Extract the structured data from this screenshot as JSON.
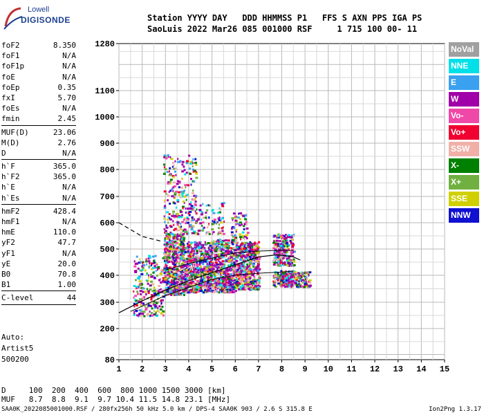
{
  "logo": {
    "line1": "Lowell",
    "line2": "DIGISONDE"
  },
  "header": {
    "line1": "Station YYYY DAY   DDD HHMMSS P1   FFS S AXN PPS IGA PS",
    "line2": "SaoLuis 2022 Mar26 085 001000 RSF     1 715 100 00- 11"
  },
  "params": {
    "group1": [
      {
        "k": "foF2",
        "v": "8.350"
      },
      {
        "k": "foF1",
        "v": "N/A"
      },
      {
        "k": "foF1p",
        "v": "N/A"
      },
      {
        "k": "foE",
        "v": "N/A"
      },
      {
        "k": "foEp",
        "v": "0.35"
      },
      {
        "k": "fxI",
        "v": "5.70"
      },
      {
        "k": "foEs",
        "v": "N/A"
      },
      {
        "k": "fmin",
        "v": "2.45"
      }
    ],
    "group2": [
      {
        "k": "MUF(D)",
        "v": "23.06"
      },
      {
        "k": "M(D)",
        "v": "2.76"
      },
      {
        "k": "D",
        "v": "N/A"
      }
    ],
    "group3": [
      {
        "k": "h`F",
        "v": "365.0"
      },
      {
        "k": "h`F2",
        "v": "365.0"
      },
      {
        "k": "h`E",
        "v": "N/A"
      },
      {
        "k": "h`Es",
        "v": "N/A"
      }
    ],
    "group4": [
      {
        "k": "hmF2",
        "v": "428.4"
      },
      {
        "k": "hmF1",
        "v": "N/A"
      },
      {
        "k": "hmE",
        "v": "110.0"
      },
      {
        "k": "yF2",
        "v": "47.7"
      },
      {
        "k": "yF1",
        "v": "N/A"
      },
      {
        "k": "yE",
        "v": "20.0"
      },
      {
        "k": "B0",
        "v": "70.8"
      },
      {
        "k": "B1",
        "v": "1.00"
      }
    ],
    "group5": [
      {
        "k": "C-level",
        "v": "44"
      }
    ]
  },
  "auto": {
    "line1": "Auto:",
    "line2": "Artist5",
    "line3": "500200"
  },
  "legend": [
    {
      "label": "NoVal",
      "color": "#a0a0a0"
    },
    {
      "label": "NNE",
      "color": "#00e0e8"
    },
    {
      "label": "E",
      "color": "#3aa0f0"
    },
    {
      "label": "W",
      "color": "#a000a8"
    },
    {
      "label": "Vo-",
      "color": "#f048a8"
    },
    {
      "label": "Vo+",
      "color": "#f00030"
    },
    {
      "label": "SSW",
      "color": "#f0b0a8"
    },
    {
      "label": "X-",
      "color": "#008000"
    },
    {
      "label": "X+",
      "color": "#70b040"
    },
    {
      "label": "SSE",
      "color": "#d0d000"
    },
    {
      "label": "NNW",
      "color": "#1010d0"
    }
  ],
  "bottom": {
    "line1": "D     100  200  400  600  800 1000 1500 3000 [km]",
    "line2": "MUF   8.7  8.8  9.1  9.7 10.4 11.5 14.8 23.1 [MHz]"
  },
  "footer": "SAA0K_2022085001000.RSF / 280fx256h 50 kHz 5.0 km / DPS-4 SAA0K 903 / 2.6 S 315.8 E",
  "version": "Ion2Png 1.3.17",
  "chart_data": {
    "type": "scatter",
    "x_ticks": [
      1,
      2,
      3,
      4,
      5,
      6,
      7,
      8,
      9,
      10,
      11,
      12,
      13,
      14,
      15
    ],
    "y_ticks": [
      80,
      200,
      300,
      400,
      500,
      600,
      700,
      800,
      900,
      1000,
      1100,
      1280
    ],
    "xlim": [
      1,
      15
    ],
    "ylim": [
      80,
      1280
    ],
    "grid": true,
    "profile_solid": [
      [
        1,
        260
      ],
      [
        2,
        305
      ],
      [
        3,
        345
      ],
      [
        4,
        380
      ],
      [
        5,
        410
      ],
      [
        6,
        440
      ],
      [
        7,
        470
      ],
      [
        7.8,
        478
      ],
      [
        8.5,
        470
      ],
      [
        8.8,
        458
      ]
    ],
    "profile_dashed": [
      [
        1,
        600
      ],
      [
        2,
        548
      ],
      [
        2.8,
        530
      ]
    ],
    "trace_lower": [
      [
        1.5,
        265
      ],
      [
        3,
        325
      ],
      [
        4,
        355
      ],
      [
        5,
        385
      ],
      [
        6,
        400
      ],
      [
        7,
        408
      ],
      [
        8,
        412
      ],
      [
        8.5,
        416
      ]
    ],
    "trace_upper": [
      [
        3,
        420
      ],
      [
        4,
        445
      ],
      [
        5,
        465
      ],
      [
        6,
        485
      ],
      [
        7,
        492
      ],
      [
        8,
        495
      ],
      [
        8.5,
        494
      ]
    ],
    "echo_regions": [
      {
        "xmin": 1.6,
        "xmax": 2.9,
        "ymin": 250,
        "ymax": 480,
        "n": 260
      },
      {
        "xmin": 2.9,
        "xmax": 3.8,
        "ymin": 330,
        "ymax": 560,
        "n": 600
      },
      {
        "xmin": 3.8,
        "xmax": 5.0,
        "ymin": 340,
        "ymax": 530,
        "n": 600
      },
      {
        "xmin": 5.0,
        "xmax": 6.0,
        "ymin": 340,
        "ymax": 540,
        "n": 520
      },
      {
        "xmin": 6.0,
        "xmax": 7.0,
        "ymin": 350,
        "ymax": 530,
        "n": 480
      },
      {
        "xmin": 7.6,
        "xmax": 8.5,
        "ymin": 440,
        "ymax": 560,
        "n": 260
      },
      {
        "xmin": 7.6,
        "xmax": 9.2,
        "ymin": 360,
        "ymax": 420,
        "n": 260
      },
      {
        "xmin": 2.9,
        "xmax": 4.3,
        "ymin": 560,
        "ymax": 860,
        "n": 260
      },
      {
        "xmin": 4.3,
        "xmax": 5.5,
        "ymin": 560,
        "ymax": 680,
        "n": 90
      },
      {
        "xmin": 5.8,
        "xmax": 6.5,
        "ymin": 540,
        "ymax": 640,
        "n": 60
      }
    ],
    "echo_colors": [
      "#a000a8",
      "#a000a8",
      "#a000a8",
      "#1010d0",
      "#f048a8",
      "#f00030",
      "#d0d000",
      "#008000",
      "#70b040",
      "#3aa0f0",
      "#00e0e8",
      "#f0b0a8"
    ]
  }
}
